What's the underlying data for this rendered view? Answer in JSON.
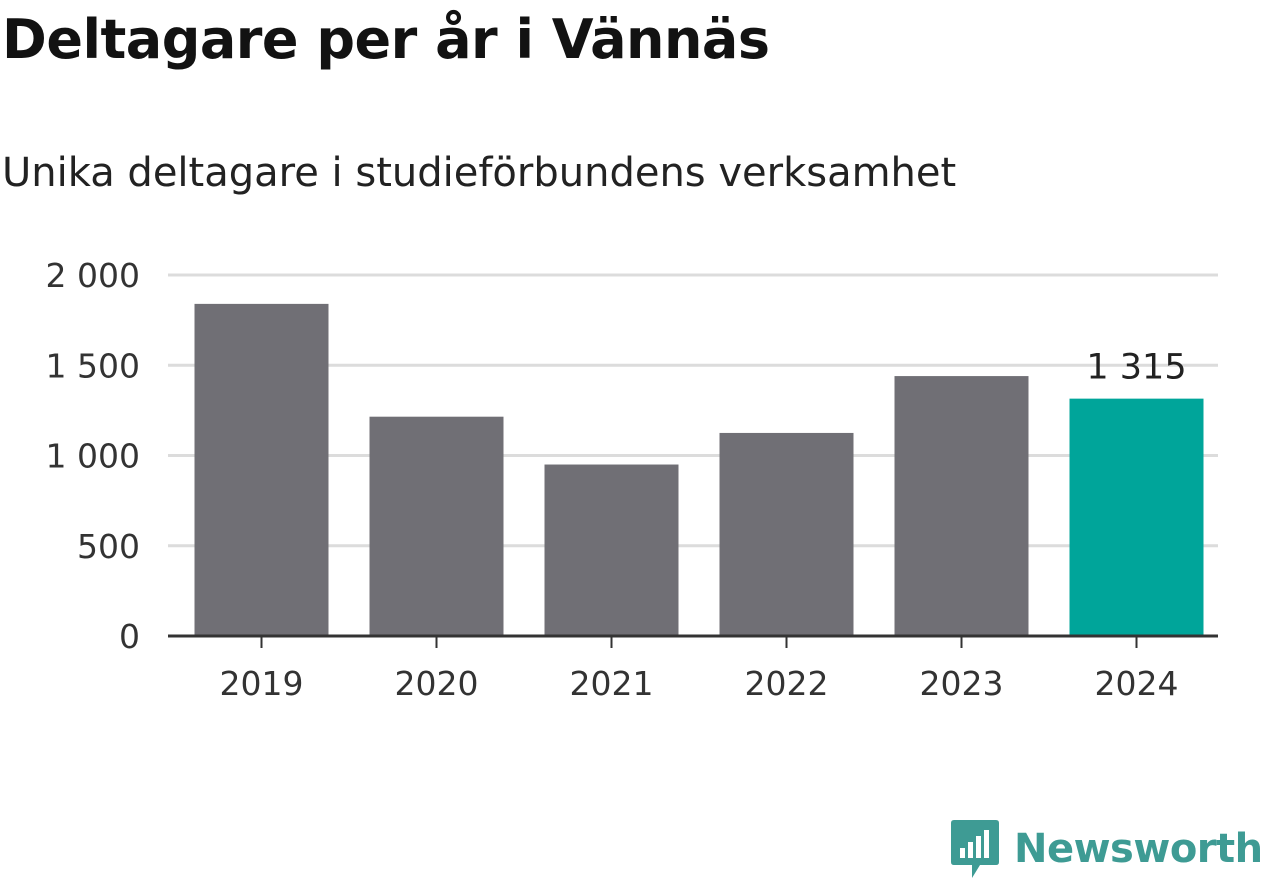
{
  "chart_data": {
    "type": "bar",
    "title": "Deltagare per år i Vännäs",
    "subtitle": "Unika deltagare i studieförbundens verksamhet",
    "categories": [
      "2019",
      "2020",
      "2021",
      "2022",
      "2023",
      "2024"
    ],
    "values": [
      1840,
      1215,
      950,
      1125,
      1440,
      1315
    ],
    "yticks": [
      0,
      500,
      1000,
      1500,
      2000
    ],
    "ytick_labels": [
      "0",
      "500",
      "1 000",
      "1 500",
      "2 000"
    ],
    "ylim": [
      0,
      2000
    ],
    "data_labels": [
      {
        "index": 5,
        "text": "1 315"
      }
    ],
    "grid": true,
    "colors": {
      "default": "#706f75",
      "highlight": "#00a59a",
      "grid": "#dcdcdc",
      "axis": "#333333"
    },
    "highlight_index": 5
  },
  "brand": {
    "name": "Newsworthy",
    "icon": "newsworthy-logo-icon",
    "color": "#3e9b94"
  }
}
